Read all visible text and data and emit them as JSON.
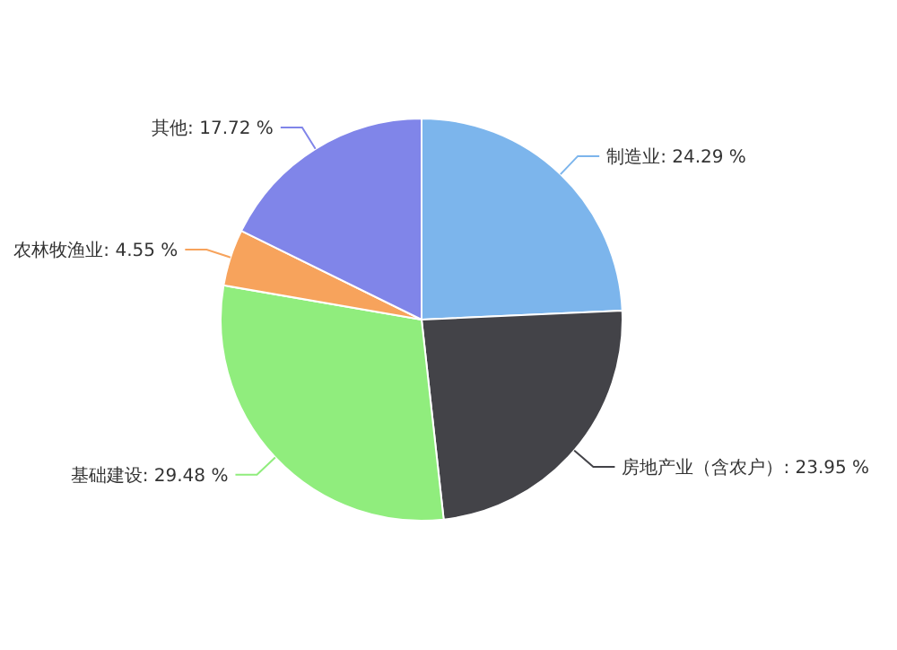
{
  "chart_data": {
    "type": "pie",
    "categories": [
      "制造业",
      "房地产业（含农户）",
      "基础建设",
      "农林牧渔业",
      "其他"
    ],
    "values": [
      24.29,
      23.95,
      29.48,
      4.55,
      17.72
    ],
    "value_labels": [
      "24.29 %",
      "23.95 %",
      "29.48 %",
      "4.55 %",
      "17.72 %"
    ],
    "colors": [
      "#7cb5ec",
      "#434348",
      "#90ed7d",
      "#f7a35c",
      "#8085e9"
    ]
  }
}
